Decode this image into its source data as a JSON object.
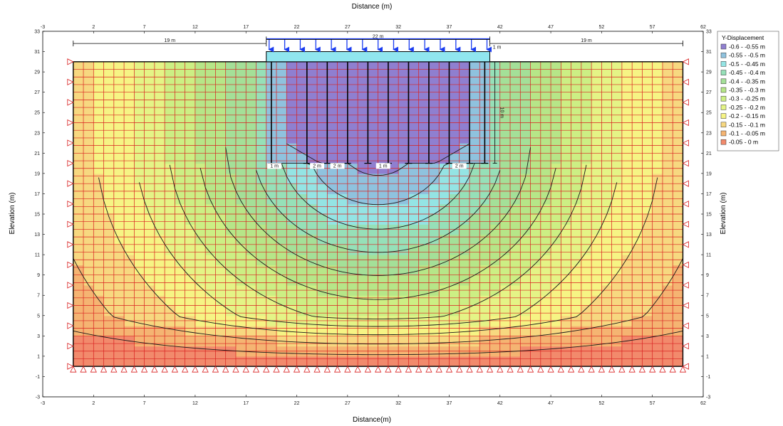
{
  "chart_data": {
    "type": "heatmap",
    "xlabel_top": "Distance (m)",
    "xlabel_bottom": "Distance(m)",
    "ylabel": "Elevation (m)",
    "xlim": [
      -3,
      62
    ],
    "ylim": [
      -3,
      33
    ],
    "xticks": [
      -3,
      2,
      7,
      12,
      17,
      22,
      27,
      32,
      37,
      42,
      47,
      52,
      57,
      62
    ],
    "yticks": [
      -3,
      -1,
      1,
      3,
      5,
      7,
      9,
      11,
      13,
      15,
      17,
      19,
      21,
      23,
      25,
      27,
      29,
      31,
      33
    ],
    "domain": {
      "x": [
        0,
        60
      ],
      "y": [
        0,
        30
      ]
    },
    "footing": {
      "x": [
        19,
        41
      ],
      "y": [
        30,
        31
      ]
    },
    "piles": [
      {
        "x": 19.5,
        "bottom": 20
      },
      {
        "x": 23,
        "bottom": 20
      },
      {
        "x": 25,
        "bottom": 20
      },
      {
        "x": 27,
        "bottom": 20
      },
      {
        "x": 29,
        "bottom": 20
      },
      {
        "x": 31,
        "bottom": 20
      },
      {
        "x": 33,
        "bottom": 20
      },
      {
        "x": 35,
        "bottom": 20
      },
      {
        "x": 37,
        "bottom": 20
      },
      {
        "x": 39,
        "bottom": 20
      },
      {
        "x": 40.5,
        "bottom": 20
      }
    ],
    "dimensions": {
      "left_width": "19 m",
      "footing_width": "22 m",
      "right_width": "19 m",
      "footing_thickness": "1 m",
      "pile_length": "10 m",
      "spacing_labels": [
        "1 m",
        "2 m",
        "2 m",
        "1 m",
        "2 m"
      ]
    },
    "contours_y_displacement": [
      -0.05,
      -0.1,
      -0.15,
      -0.2,
      -0.25,
      -0.3,
      -0.35,
      -0.4,
      -0.45,
      -0.5,
      -0.55
    ],
    "legend": {
      "title": "Y-Displacement",
      "position": "right",
      "entries": [
        {
          "label": "-0.6 - -0.55 m",
          "color": "#8f7fd0"
        },
        {
          "label": "-0.55 - -0.5 m",
          "color": "#8fc2de"
        },
        {
          "label": "-0.5 - -0.45 m",
          "color": "#94e4e4"
        },
        {
          "label": "-0.45 - -0.4 m",
          "color": "#96e0b8"
        },
        {
          "label": "-0.4 - -0.35 m",
          "color": "#a4e098"
        },
        {
          "label": "-0.35 - -0.3 m",
          "color": "#b6e688"
        },
        {
          "label": "-0.3 - -0.25 m",
          "color": "#ccef84"
        },
        {
          "label": "-0.25 - -0.2 m",
          "color": "#e4f486"
        },
        {
          "label": "-0.2 - -0.15 m",
          "color": "#f6f484"
        },
        {
          "label": "-0.15 - -0.1 m",
          "color": "#f7d880"
        },
        {
          "label": "-0.1 - -0.05 m",
          "color": "#f5b472"
        },
        {
          "label": "-0.05 - 0 m",
          "color": "#f28a6c"
        }
      ]
    }
  }
}
